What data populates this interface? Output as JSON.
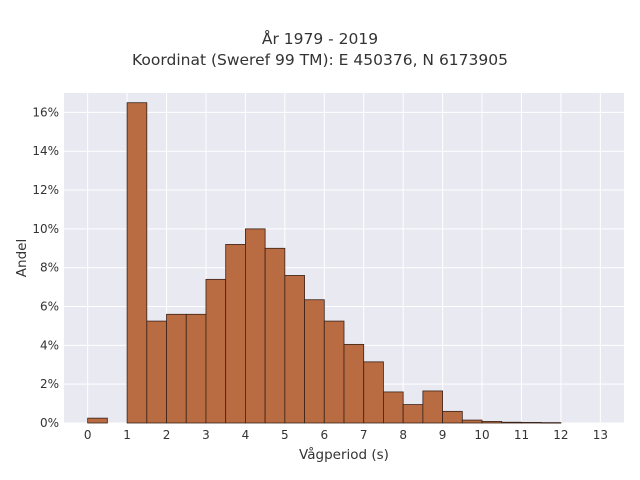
{
  "chart_data": {
    "type": "bar",
    "title": "År 1979 - 2019",
    "subtitle": "Koordinat (Sweref 99 TM): E 450376, N 6173905",
    "xlabel": "Vågperiod (s)",
    "ylabel": "Andel",
    "bin_width": 0.5,
    "x_ticks": [
      "0",
      "1",
      "2",
      "3",
      "4",
      "5",
      "6",
      "7",
      "8",
      "9",
      "10",
      "11",
      "12",
      "13"
    ],
    "y_ticks": [
      "0%",
      "2%",
      "4%",
      "6%",
      "8%",
      "10%",
      "12%",
      "14%",
      "16%"
    ],
    "xlim": [
      -0.6,
      13.6
    ],
    "ylim": [
      0,
      17.0
    ],
    "grid": true,
    "bar_color": "#b96b42",
    "bar_edge_color": "#3a2218",
    "background_color": "#e9e9f2",
    "bins": [
      {
        "x": 0.0,
        "value": 0.25
      },
      {
        "x": 1.0,
        "value": 16.5
      },
      {
        "x": 1.5,
        "value": 5.25
      },
      {
        "x": 2.0,
        "value": 5.6
      },
      {
        "x": 2.5,
        "value": 5.6
      },
      {
        "x": 3.0,
        "value": 7.4
      },
      {
        "x": 3.5,
        "value": 9.2
      },
      {
        "x": 4.0,
        "value": 10.0
      },
      {
        "x": 4.5,
        "value": 9.0
      },
      {
        "x": 5.0,
        "value": 7.6
      },
      {
        "x": 5.5,
        "value": 6.35
      },
      {
        "x": 6.0,
        "value": 5.25
      },
      {
        "x": 6.5,
        "value": 4.05
      },
      {
        "x": 7.0,
        "value": 3.15
      },
      {
        "x": 7.5,
        "value": 1.6
      },
      {
        "x": 8.0,
        "value": 0.95
      },
      {
        "x": 8.5,
        "value": 1.65
      },
      {
        "x": 9.0,
        "value": 0.6
      },
      {
        "x": 9.5,
        "value": 0.15
      },
      {
        "x": 10.0,
        "value": 0.08
      },
      {
        "x": 10.5,
        "value": 0.04
      },
      {
        "x": 11.0,
        "value": 0.03
      },
      {
        "x": 11.5,
        "value": 0.02
      }
    ]
  }
}
